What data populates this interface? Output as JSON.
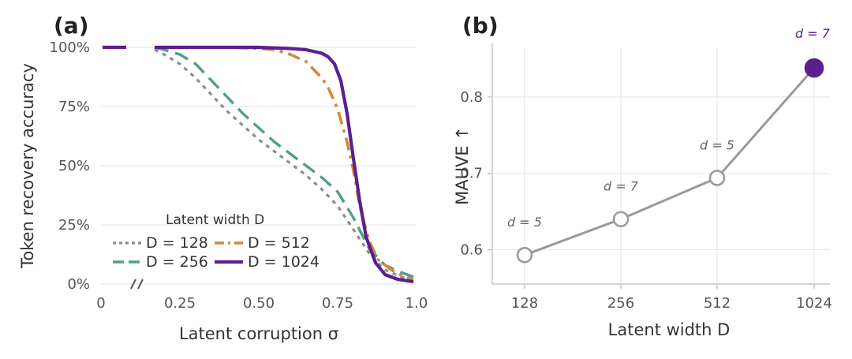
{
  "colors": {
    "D128": "#8e8e92",
    "D256": "#4f9e8e",
    "D512": "#d4883b",
    "D1024": "#5b1f8f",
    "mauve_line": "#9a9a9a",
    "highlight": "#5b1f8f"
  },
  "chart_data": [
    {
      "type": "line",
      "panel": "(a)",
      "xlabel": "Latent corruption σ",
      "ylabel": "Token recovery accuracy",
      "xlim": [
        0,
        1.0
      ],
      "ylim": [
        0,
        1.0
      ],
      "x_break_after": 0,
      "x_ticks": [
        {
          "value": 0,
          "label": "0"
        },
        {
          "value": 0.25,
          "label": "0.25"
        },
        {
          "value": 0.5,
          "label": "0.50"
        },
        {
          "value": 0.75,
          "label": "0.75"
        },
        {
          "value": 1.0,
          "label": "1.0"
        }
      ],
      "y_ticks": [
        {
          "value": 0,
          "label": "0%"
        },
        {
          "value": 0.25,
          "label": "25%"
        },
        {
          "value": 0.5,
          "label": "50%"
        },
        {
          "value": 0.75,
          "label": "75%"
        },
        {
          "value": 1.0,
          "label": "100%"
        }
      ],
      "legend_title": "Latent width D",
      "legend_position": "bottom-left",
      "grid": true,
      "series": [
        {
          "name": "D = 128",
          "style": "dotted",
          "start_value": 1.0,
          "x": [
            0.17,
            0.2,
            0.25,
            0.3,
            0.35,
            0.4,
            0.45,
            0.5,
            0.55,
            0.6,
            0.65,
            0.7,
            0.75,
            0.8,
            0.85,
            0.9,
            0.95,
            0.99
          ],
          "y": [
            0.99,
            0.97,
            0.93,
            0.87,
            0.8,
            0.73,
            0.67,
            0.61,
            0.56,
            0.51,
            0.46,
            0.4,
            0.33,
            0.23,
            0.13,
            0.06,
            0.03,
            0.02
          ]
        },
        {
          "name": "D = 256",
          "style": "dashed",
          "start_value": 1.0,
          "x": [
            0.17,
            0.2,
            0.25,
            0.3,
            0.35,
            0.4,
            0.45,
            0.5,
            0.55,
            0.6,
            0.65,
            0.7,
            0.75,
            0.8,
            0.85,
            0.9,
            0.95,
            0.99
          ],
          "y": [
            1.0,
            0.99,
            0.97,
            0.93,
            0.86,
            0.79,
            0.72,
            0.66,
            0.6,
            0.55,
            0.5,
            0.45,
            0.39,
            0.28,
            0.15,
            0.08,
            0.05,
            0.03
          ]
        },
        {
          "name": "D = 512",
          "style": "dashdot",
          "start_value": 1.0,
          "x": [
            0.17,
            0.3,
            0.4,
            0.5,
            0.55,
            0.6,
            0.65,
            0.7,
            0.72,
            0.75,
            0.78,
            0.8,
            0.82,
            0.85,
            0.88,
            0.92,
            0.96,
            0.99
          ],
          "y": [
            1.0,
            1.0,
            1.0,
            0.995,
            0.99,
            0.97,
            0.94,
            0.87,
            0.83,
            0.74,
            0.6,
            0.48,
            0.33,
            0.18,
            0.1,
            0.06,
            0.03,
            0.02
          ]
        },
        {
          "name": "D = 1024",
          "style": "solid",
          "start_value": 1.0,
          "x": [
            0.17,
            0.3,
            0.4,
            0.5,
            0.6,
            0.65,
            0.7,
            0.72,
            0.74,
            0.76,
            0.78,
            0.8,
            0.82,
            0.84,
            0.87,
            0.9,
            0.94,
            0.99
          ],
          "y": [
            1.0,
            1.0,
            1.0,
            1.0,
            0.995,
            0.99,
            0.975,
            0.96,
            0.93,
            0.86,
            0.72,
            0.53,
            0.35,
            0.2,
            0.09,
            0.04,
            0.02,
            0.01
          ]
        }
      ]
    },
    {
      "type": "line",
      "panel": "(b)",
      "xlabel": "Latent width D",
      "ylabel": "MAUVE ↑",
      "categories": [
        "128",
        "256",
        "512",
        "1024"
      ],
      "values": [
        0.593,
        0.64,
        0.694,
        0.838
      ],
      "annotations": [
        "d = 5",
        "d = 7",
        "d = 5",
        "d = 7"
      ],
      "highlight_index": 3,
      "ylim": [
        0.555,
        0.865
      ],
      "y_ticks": [
        {
          "value": 0.6,
          "label": "0.6"
        },
        {
          "value": 0.7,
          "label": "0.7"
        },
        {
          "value": 0.8,
          "label": "0.8"
        }
      ],
      "grid": true
    }
  ]
}
